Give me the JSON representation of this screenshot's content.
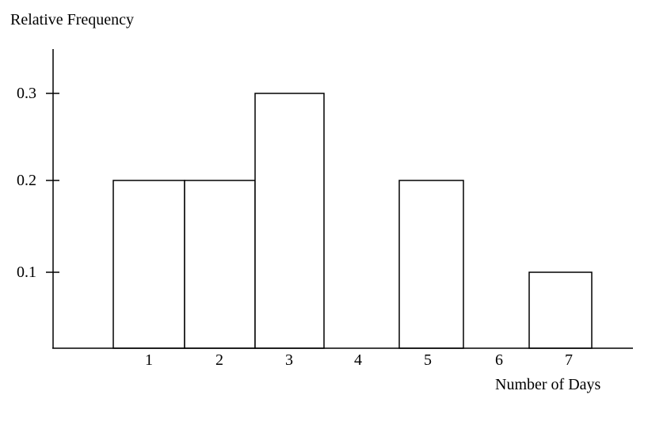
{
  "figure": {
    "y_axis_title": "Relative Frequency",
    "x_axis_title": "Number of Days"
  },
  "chart_data": {
    "type": "bar",
    "title": "",
    "ylabel": "Relative Frequency",
    "xlabel": "Number of Days",
    "categories": [
      "1",
      "2",
      "3",
      "4",
      "5",
      "6",
      "7"
    ],
    "values": [
      0.2,
      0.2,
      0.3,
      0,
      0.2,
      0,
      0.1
    ],
    "y_tick_labels": [
      "0.1",
      "0.2",
      "0.3"
    ],
    "y_tick_values": [
      0.1,
      0.2,
      0.3
    ],
    "ylim": [
      0,
      0.35
    ],
    "grid": false,
    "legend": "none",
    "bar_fill": "#ffffff",
    "stroke_color": "#000000",
    "background_color": "#ffffff"
  }
}
